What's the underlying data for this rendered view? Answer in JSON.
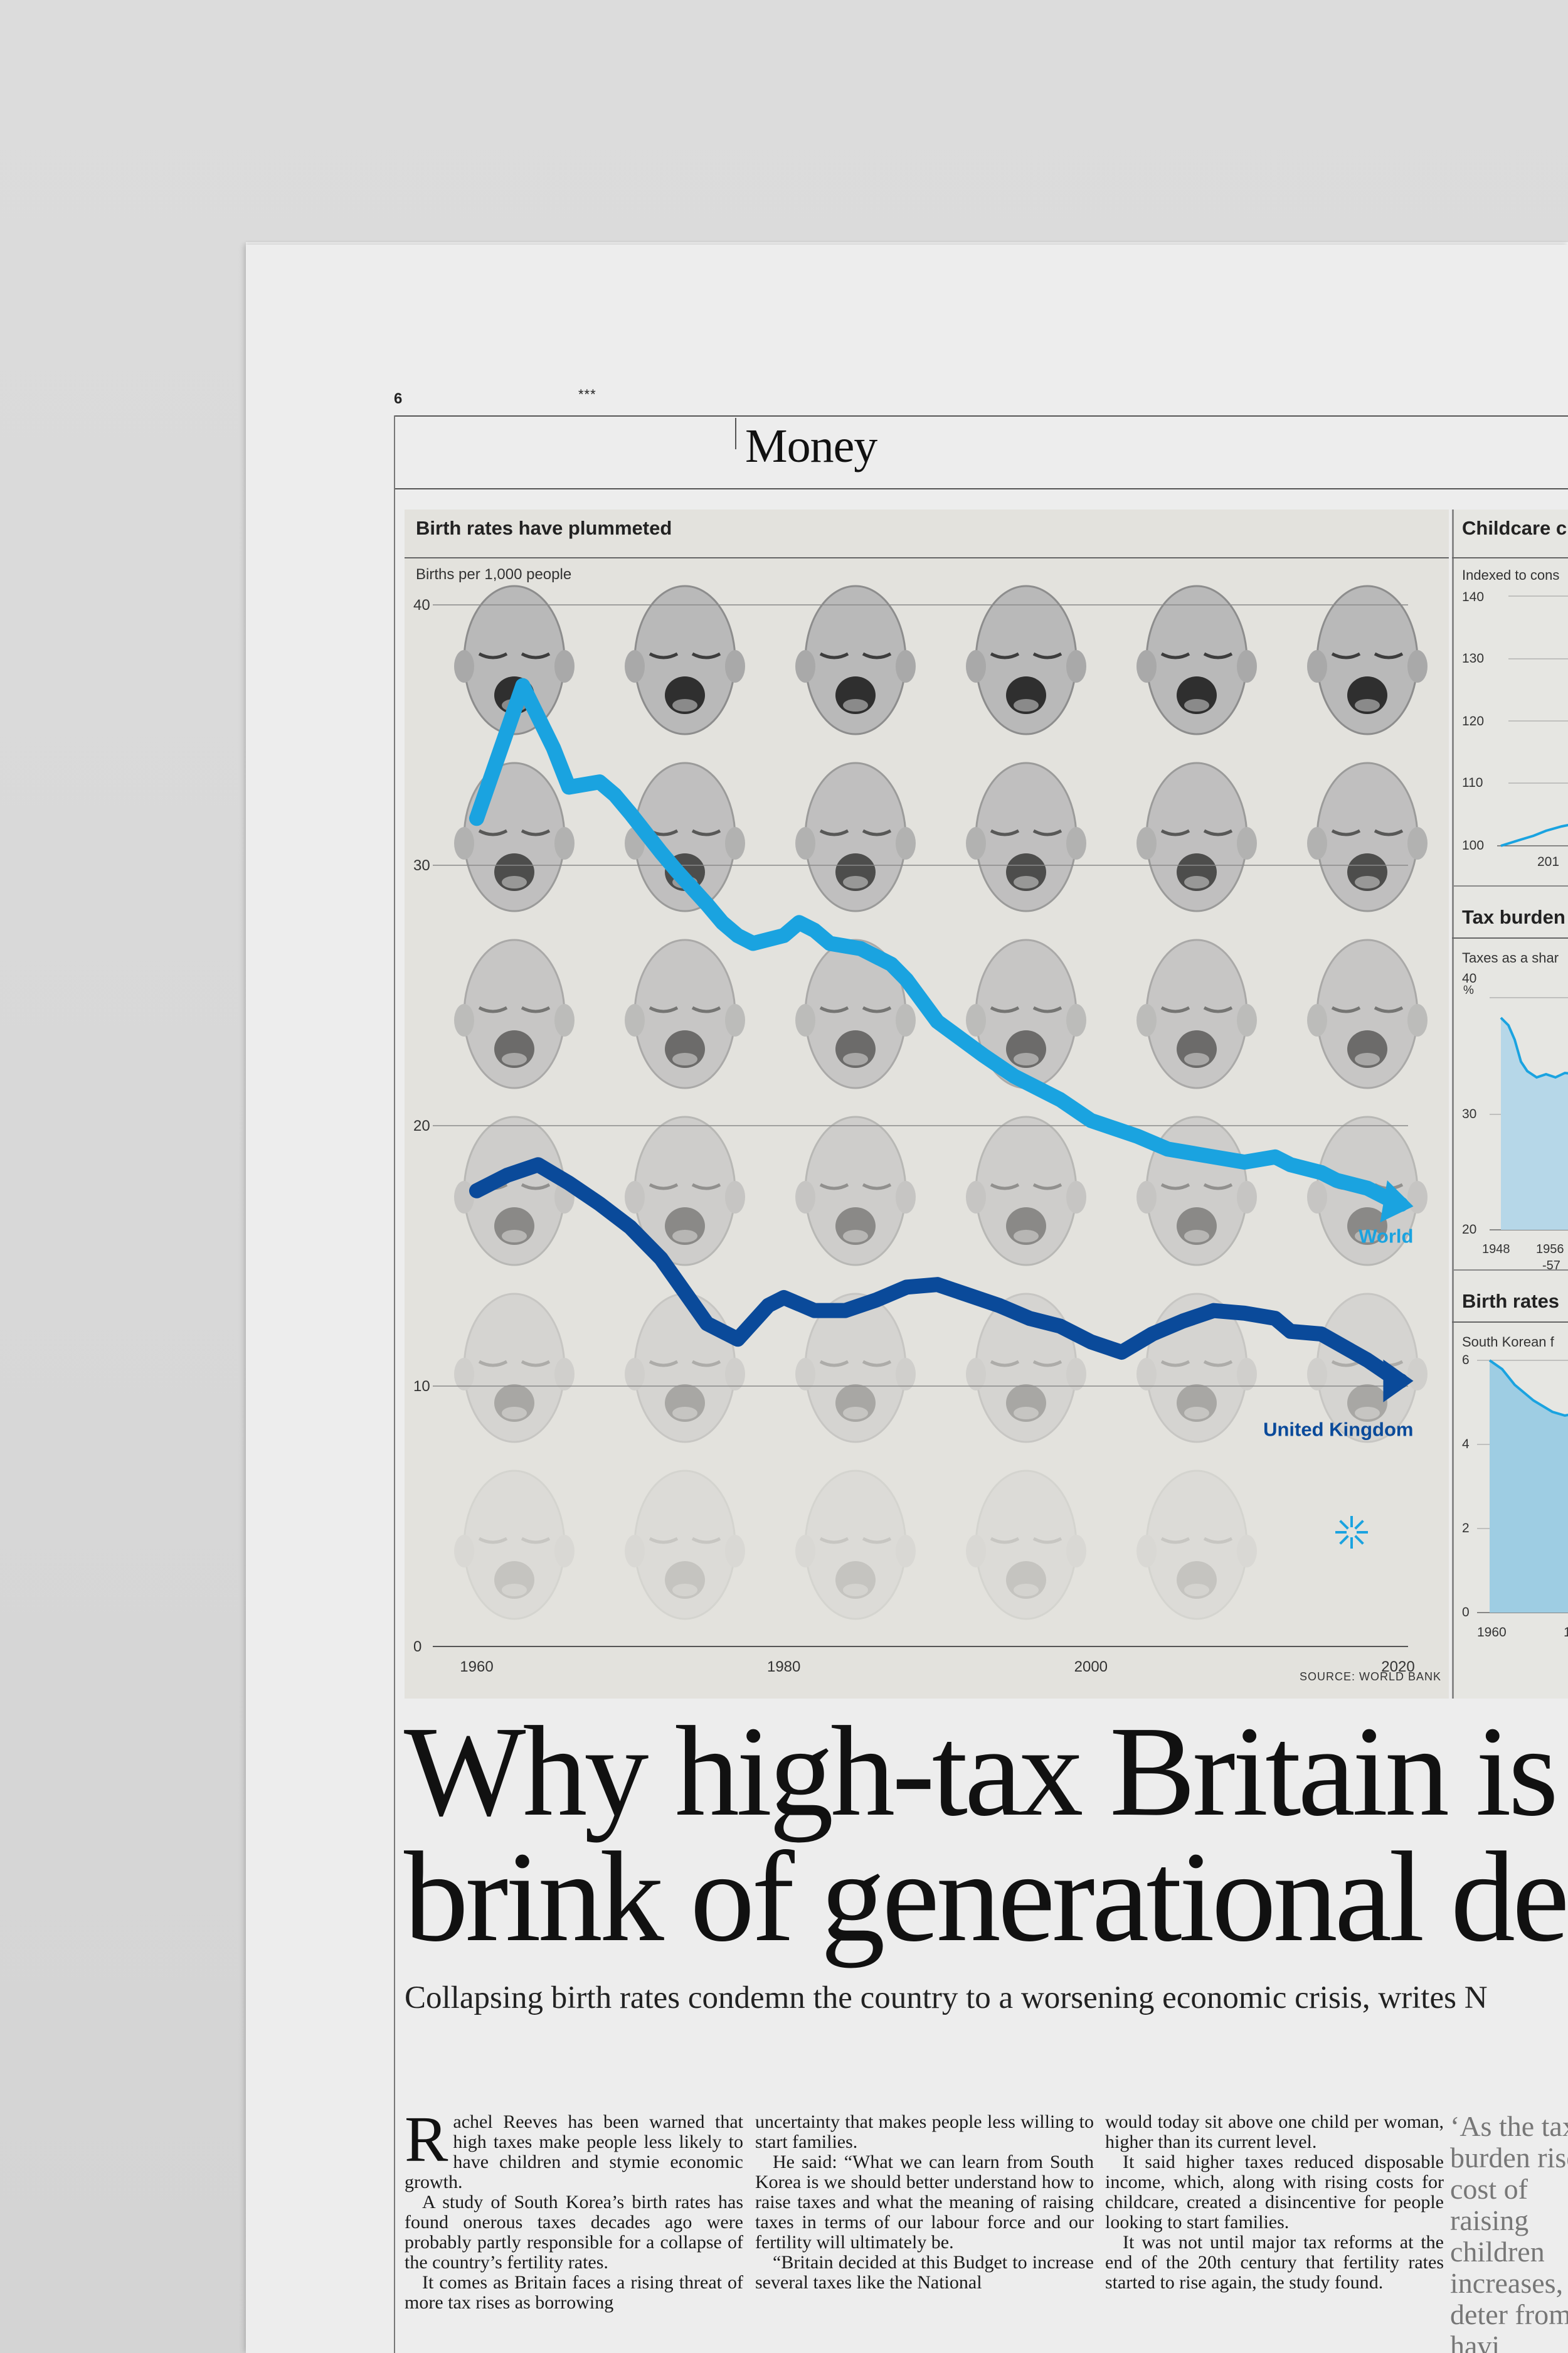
{
  "page": {
    "number": "6",
    "stars": "***",
    "section": "Money"
  },
  "main_chart": {
    "title": "Birth rates have plummeted",
    "unit_label": "Births per 1,000 people",
    "source": "SOURCE: WORLD BANK"
  },
  "side_charts": {
    "childcare": {
      "title": "Childcare c",
      "subtitle": "Indexed to cons",
      "ticks": [
        "140",
        "130",
        "120",
        "110",
        "100"
      ],
      "xtick": "201"
    },
    "tax": {
      "title": "Tax burden",
      "subtitle": "Taxes as a shar",
      "ticks": [
        "40",
        "30",
        "20"
      ],
      "unit": "%",
      "xticks": [
        "1948",
        "1956",
        "-57"
      ]
    },
    "births": {
      "title": "Birth rates",
      "subtitle": "South Korean f",
      "ticks": [
        "6",
        "4",
        "2",
        "0"
      ],
      "xticks": [
        "1960",
        "1"
      ]
    }
  },
  "chart_data": {
    "type": "line",
    "title": "Birth rates have plummeted",
    "ylabel": "Births per 1,000 people",
    "ylim": [
      0,
      40
    ],
    "yticks": [
      0,
      10,
      20,
      30,
      40
    ],
    "xlim": [
      1960,
      2022
    ],
    "xticks": [
      1960,
      1980,
      2000,
      2020
    ],
    "grid": true,
    "colors": {
      "World": "#1aa3e0",
      "United Kingdom": "#0a4a9a"
    },
    "series": [
      {
        "name": "World",
        "x": [
          1960,
          1963,
          1965,
          1966,
          1968,
          1969,
          1970,
          1972,
          1973,
          1975,
          1976,
          1977,
          1978,
          1980,
          1981,
          1982,
          1983,
          1985,
          1987,
          1988,
          1990,
          1993,
          1995,
          1998,
          2000,
          2003,
          2005,
          2007,
          2008,
          2010,
          2012,
          2013,
          2015,
          2016,
          2018,
          2020,
          2021
        ],
        "y": [
          31.8,
          36.9,
          34.5,
          33.0,
          33.2,
          32.7,
          32.0,
          30.5,
          29.8,
          28.5,
          27.8,
          27.3,
          27.0,
          27.3,
          27.8,
          27.5,
          27.0,
          26.8,
          26.2,
          25.6,
          24.0,
          22.7,
          21.9,
          21.0,
          20.2,
          19.6,
          19.1,
          18.9,
          18.8,
          18.6,
          18.8,
          18.5,
          18.2,
          17.9,
          17.6,
          17.0,
          16.9
        ]
      },
      {
        "name": "United Kingdom",
        "x": [
          1960,
          1962,
          1964,
          1966,
          1968,
          1970,
          1972,
          1975,
          1977,
          1979,
          1980,
          1982,
          1984,
          1986,
          1988,
          1990,
          1992,
          1994,
          1996,
          1998,
          2000,
          2002,
          2004,
          2006,
          2008,
          2010,
          2012,
          2013,
          2015,
          2018,
          2020,
          2021
        ],
        "y": [
          17.5,
          18.1,
          18.5,
          17.8,
          17.0,
          16.1,
          14.9,
          12.4,
          11.8,
          13.1,
          13.4,
          12.9,
          12.9,
          13.3,
          13.8,
          13.9,
          13.5,
          13.1,
          12.6,
          12.3,
          11.7,
          11.3,
          12.0,
          12.5,
          12.9,
          12.8,
          12.6,
          12.1,
          12.0,
          11.0,
          10.2,
          10.2
        ]
      }
    ]
  },
  "article": {
    "headline_line1": "Why high-tax Britain is",
    "headline_line2": "brink of generational de",
    "standfirst": "Collapsing birth rates condemn the country to a worsening economic crisis, writes N",
    "col1_dropcap": "R",
    "col1_p1": "achel Reeves has been warned that high taxes make people less likely to have children and stymie economic growth.",
    "col1_p2": "A study of South Korea’s birth rates has found onerous taxes decades ago were probably partly responsible for a collapse of the country’s fertility rates.",
    "col1_p3": "It comes as Britain faces a rising threat of more tax rises as borrowing",
    "col2_p1": "uncertainty that makes people less willing to start families.",
    "col2_p2": "He said: “What we can learn from South Korea is we should better understand how to raise taxes and what the meaning of raising taxes in terms of our labour force and our fertility will ultimately be.",
    "col2_p3": "“Britain decided at this Budget to increase several taxes like the National",
    "col3_p1": "would today sit above one child per woman, higher than its current level.",
    "col3_p2": "It said higher taxes reduced disposable income, which, along with rising costs for childcare, created a disincentive for people looking to start families.",
    "col3_p3": "It was not until major tax reforms at the end of the 20th century that fertility rates started to rise again, the study found.",
    "pullquote": "‘As the tax burden rises, cost of raising children increases, can deter from havi"
  }
}
